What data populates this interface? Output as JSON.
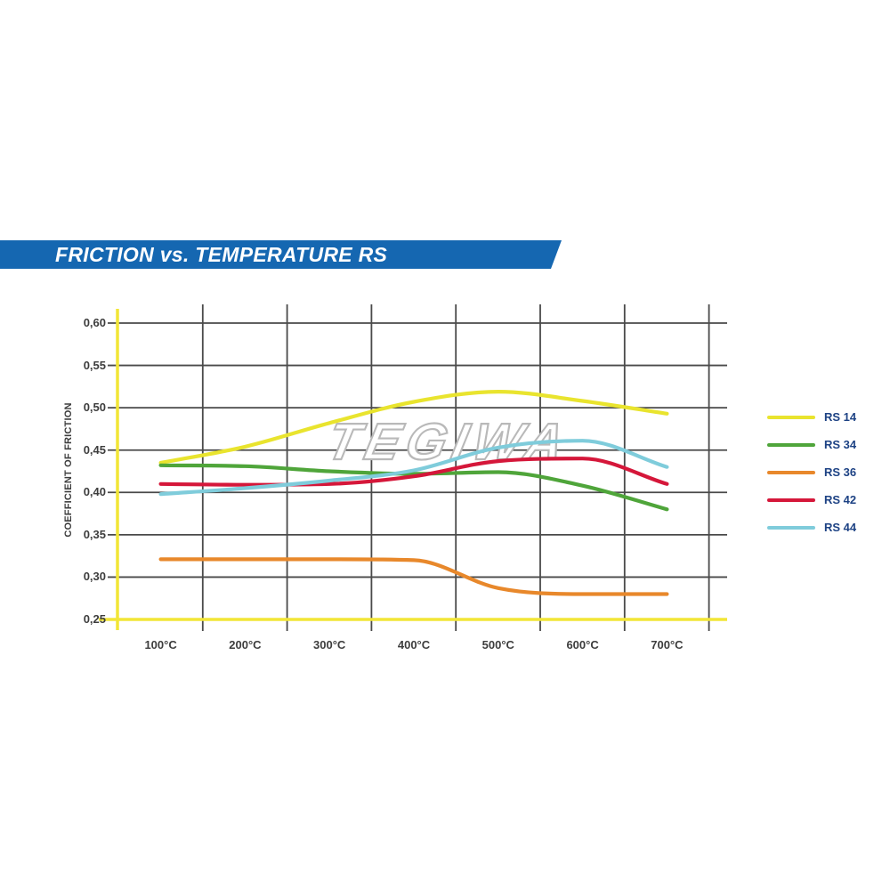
{
  "banner": {
    "title": "FRICTION vs. TEMPERATURE RS"
  },
  "watermark": "TEGIWA",
  "colors": {
    "banner_blue": "#1567b1",
    "banner_text": "#ffffff",
    "axis_yellow": "#f2e636",
    "grid": "#4a4a4a",
    "tick_text": "#3d3d3d",
    "legend_text": "#1d4284",
    "watermark_outline": "#b9b9b9",
    "watermark_fill": "#ffffff"
  },
  "chart_data": {
    "type": "line",
    "title": "FRICTION vs. TEMPERATURE RS",
    "ylabel": "COEFFICIENT OF FRICTION",
    "xlabel": "",
    "x": [
      100,
      200,
      300,
      400,
      500,
      600,
      700
    ],
    "x_tick_labels": [
      "100°C",
      "200°C",
      "300°C",
      "400°C",
      "500°C",
      "600°C",
      "700°C"
    ],
    "ylim": [
      0.25,
      0.6
    ],
    "y_ticks": [
      0.25,
      0.3,
      0.35,
      0.4,
      0.45,
      0.5,
      0.55,
      0.6
    ],
    "y_tick_labels": [
      "0,25",
      "0,30",
      "0,35",
      "0,40",
      "0,45",
      "0,50",
      "0,55",
      "0,60"
    ],
    "grid": true,
    "legend_position": "right",
    "series": [
      {
        "name": "RS 14",
        "color": "#e9e42e",
        "values": [
          0.435,
          0.454,
          0.482,
          0.507,
          0.519,
          0.508,
          0.493
        ]
      },
      {
        "name": "RS 34",
        "color": "#4fa53a",
        "values": [
          0.432,
          0.431,
          0.425,
          0.422,
          0.424,
          0.408,
          0.38
        ]
      },
      {
        "name": "RS 36",
        "color": "#e8882b",
        "values": [
          0.321,
          0.321,
          0.321,
          0.32,
          0.287,
          0.28,
          0.28
        ]
      },
      {
        "name": "RS 42",
        "color": "#d5173a",
        "values": [
          0.41,
          0.409,
          0.41,
          0.419,
          0.437,
          0.44,
          0.41
        ]
      },
      {
        "name": "RS 44",
        "color": "#7fccdb",
        "values": [
          0.398,
          0.405,
          0.414,
          0.426,
          0.453,
          0.461,
          0.43
        ]
      }
    ]
  }
}
